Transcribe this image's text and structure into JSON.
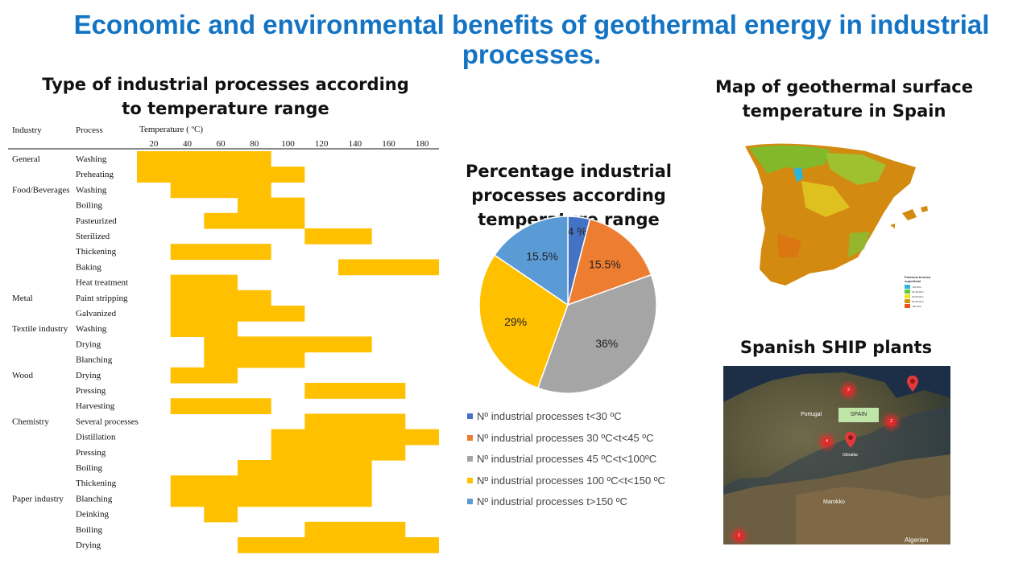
{
  "title": "Economic and environmental benefits of geothermal energy in industrial processes.",
  "table_section": {
    "title": "Type of industrial processes according to temperature range",
    "headers": {
      "industry": "Industry",
      "process": "Process",
      "temperature": "Temperature ( ºC)"
    },
    "temperature_ticks": [
      20,
      40,
      60,
      80,
      100,
      120,
      140,
      160,
      180
    ],
    "bar_color": "#ffc000",
    "rows": [
      {
        "industry": "General",
        "process": "Washing",
        "range": [
          20,
          80
        ]
      },
      {
        "industry": "",
        "process": "Preheating",
        "range": [
          20,
          100
        ]
      },
      {
        "industry": "Food/Beverages",
        "process": "Washing",
        "range": [
          40,
          80
        ]
      },
      {
        "industry": "",
        "process": "Boiling",
        "range": [
          80,
          100
        ]
      },
      {
        "industry": "",
        "process": "Pasteurized",
        "range": [
          60,
          100
        ]
      },
      {
        "industry": "",
        "process": "Sterilized",
        "range": [
          120,
          140
        ]
      },
      {
        "industry": "",
        "process": "Thickening",
        "range": [
          40,
          80
        ]
      },
      {
        "industry": "",
        "process": "Baking",
        "range": [
          140,
          180
        ]
      },
      {
        "industry": "",
        "process": "Heat treatment",
        "range": [
          40,
          60
        ]
      },
      {
        "industry": "Metal",
        "process": "Paint stripping",
        "range": [
          40,
          80
        ]
      },
      {
        "industry": "",
        "process": "Galvanized",
        "range": [
          40,
          100
        ]
      },
      {
        "industry": "Textile industry",
        "process": "Washing",
        "range": [
          40,
          60
        ]
      },
      {
        "industry": "",
        "process": "Drying",
        "range": [
          60,
          140
        ]
      },
      {
        "industry": "",
        "process": "Blanching",
        "range": [
          60,
          100
        ]
      },
      {
        "industry": "Wood",
        "process": "Drying",
        "range": [
          40,
          60
        ]
      },
      {
        "industry": "",
        "process": "Pressing",
        "range": [
          120,
          160
        ]
      },
      {
        "industry": "",
        "process": "Harvesting",
        "range": [
          40,
          80
        ]
      },
      {
        "industry": "Chemistry",
        "process": "Several processes",
        "range": [
          120,
          160
        ]
      },
      {
        "industry": "",
        "process": "Distillation",
        "range": [
          100,
          180
        ]
      },
      {
        "industry": "",
        "process": "Pressing",
        "range": [
          100,
          160
        ]
      },
      {
        "industry": "",
        "process": "Boiling",
        "range": [
          80,
          140
        ]
      },
      {
        "industry": "",
        "process": "Thickening",
        "range": [
          40,
          140
        ]
      },
      {
        "industry": "Paper industry",
        "process": "Blanching",
        "range": [
          40,
          140
        ]
      },
      {
        "industry": "",
        "process": "Deinking",
        "range": [
          60,
          60
        ]
      },
      {
        "industry": "",
        "process": "Boiling",
        "range": [
          120,
          160
        ]
      },
      {
        "industry": "",
        "process": "Drying",
        "range": [
          80,
          180
        ]
      }
    ]
  },
  "chart_data": {
    "type": "pie",
    "title": "Percentage industrial processes according temperature range",
    "slices": [
      {
        "label": "Nº industrial processes t<30 ºC",
        "value": 4,
        "display": "4 %",
        "color": "#4472c4"
      },
      {
        "label": "Nº industrial processes 30 ºC<t<45 ºC",
        "value": 15.5,
        "display": "15.5%",
        "color": "#ed7d31"
      },
      {
        "label": "Nº industrial processes 45 ºC<t<100ºC",
        "value": 36,
        "display": "36%",
        "color": "#a5a5a5"
      },
      {
        "label": "Nº industrial processes 100 ºC<t<150 ºC",
        "value": 29,
        "display": "29%",
        "color": "#ffc000"
      },
      {
        "label": "Nº industrial processes t>150 ºC",
        "value": 15.5,
        "display": "15.5%",
        "color": "#5b9bd5"
      }
    ],
    "legend_position": "bottom"
  },
  "map_section": {
    "title": "Map of geothermal surface temperature in Spain",
    "legend_title": "Potencia térmica superficial",
    "legend_items": [
      {
        "label": "<20 W/m",
        "color": "#29b6d8"
      },
      {
        "label": "20-40 W/m",
        "color": "#5ac83a"
      },
      {
        "label": "40-60 W/m",
        "color": "#e6e62a"
      },
      {
        "label": "60-80 W/m",
        "color": "#d9940e"
      },
      {
        "label": ">80 W/m",
        "color": "#e8541a"
      }
    ]
  },
  "ship_section": {
    "title": "Spanish SHIP plants",
    "map_labels": {
      "portugal": "Portugal",
      "spain": "SPAIN",
      "gibraltar": "Gibraltar",
      "morocco": "Marokko",
      "algeria": "Algerien"
    },
    "cluster_counts": [
      "2",
      "2",
      "4",
      "2"
    ]
  }
}
